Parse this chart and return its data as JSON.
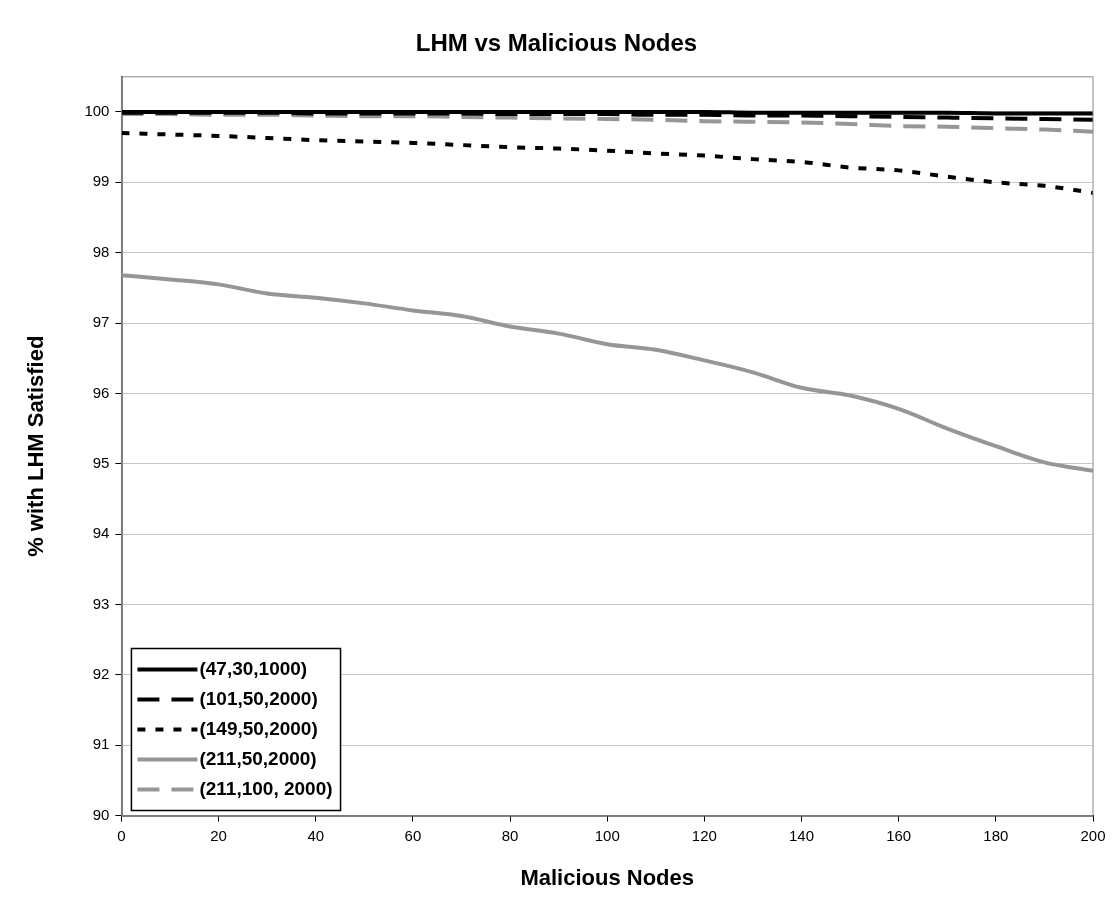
{
  "chart_data": {
    "type": "line",
    "title": "LHM vs Malicious Nodes",
    "xlabel": "Malicious Nodes",
    "ylabel": "% with LHM Satisfied",
    "x": [
      0,
      10,
      20,
      30,
      40,
      50,
      60,
      70,
      80,
      90,
      100,
      110,
      120,
      130,
      140,
      150,
      160,
      170,
      180,
      190,
      200
    ],
    "xlim": [
      0,
      200
    ],
    "xticks": [
      0,
      20,
      40,
      60,
      80,
      100,
      120,
      140,
      160,
      180,
      200
    ],
    "ylim": [
      90,
      100.5
    ],
    "yticks": [
      90,
      91,
      92,
      93,
      94,
      95,
      96,
      97,
      98,
      99,
      100
    ],
    "grid": "y",
    "legend": "bottom left",
    "marker": "none",
    "series": [
      {
        "name": "(47,30,1000)",
        "color": "#000000",
        "line_style": "solid",
        "values": [
          100,
          100,
          100,
          100,
          100,
          100,
          100,
          100,
          100,
          100,
          100,
          100,
          100,
          99.99,
          99.99,
          99.99,
          99.99,
          99.99,
          99.98,
          99.98,
          99.98
        ]
      },
      {
        "name": "(101,50,2000)",
        "color": "#000000",
        "line_style": "dashed",
        "values": [
          99.99,
          99.99,
          99.99,
          99.99,
          99.98,
          99.98,
          99.98,
          99.98,
          99.97,
          99.97,
          99.97,
          99.96,
          99.96,
          99.95,
          99.95,
          99.94,
          99.93,
          99.92,
          99.91,
          99.9,
          99.89
        ]
      },
      {
        "name": "(149,50,2000)",
        "color": "#000000",
        "line_style": "dotted",
        "values": [
          99.7,
          99.68,
          99.66,
          99.63,
          99.6,
          99.58,
          99.56,
          99.53,
          99.5,
          99.48,
          99.45,
          99.41,
          99.38,
          99.33,
          99.29,
          99.21,
          99.17,
          99.08,
          99.0,
          98.95,
          98.85
        ]
      },
      {
        "name": "(211,50,2000)",
        "color": "#969696",
        "line_style": "solid",
        "values": [
          97.68,
          97.62,
          97.55,
          97.42,
          97.36,
          97.28,
          97.18,
          97.1,
          96.95,
          96.85,
          96.7,
          96.62,
          96.47,
          96.3,
          96.08,
          95.97,
          95.78,
          95.5,
          95.25,
          95.02,
          94.9
        ]
      },
      {
        "name": "(211,100, 2000)",
        "color": "#969696",
        "line_style": "dashed",
        "values": [
          99.97,
          99.97,
          99.96,
          99.96,
          99.95,
          99.94,
          99.94,
          99.93,
          99.92,
          99.91,
          99.9,
          99.89,
          99.87,
          99.86,
          99.85,
          99.83,
          99.8,
          99.79,
          99.77,
          99.75,
          99.72
        ]
      }
    ]
  }
}
